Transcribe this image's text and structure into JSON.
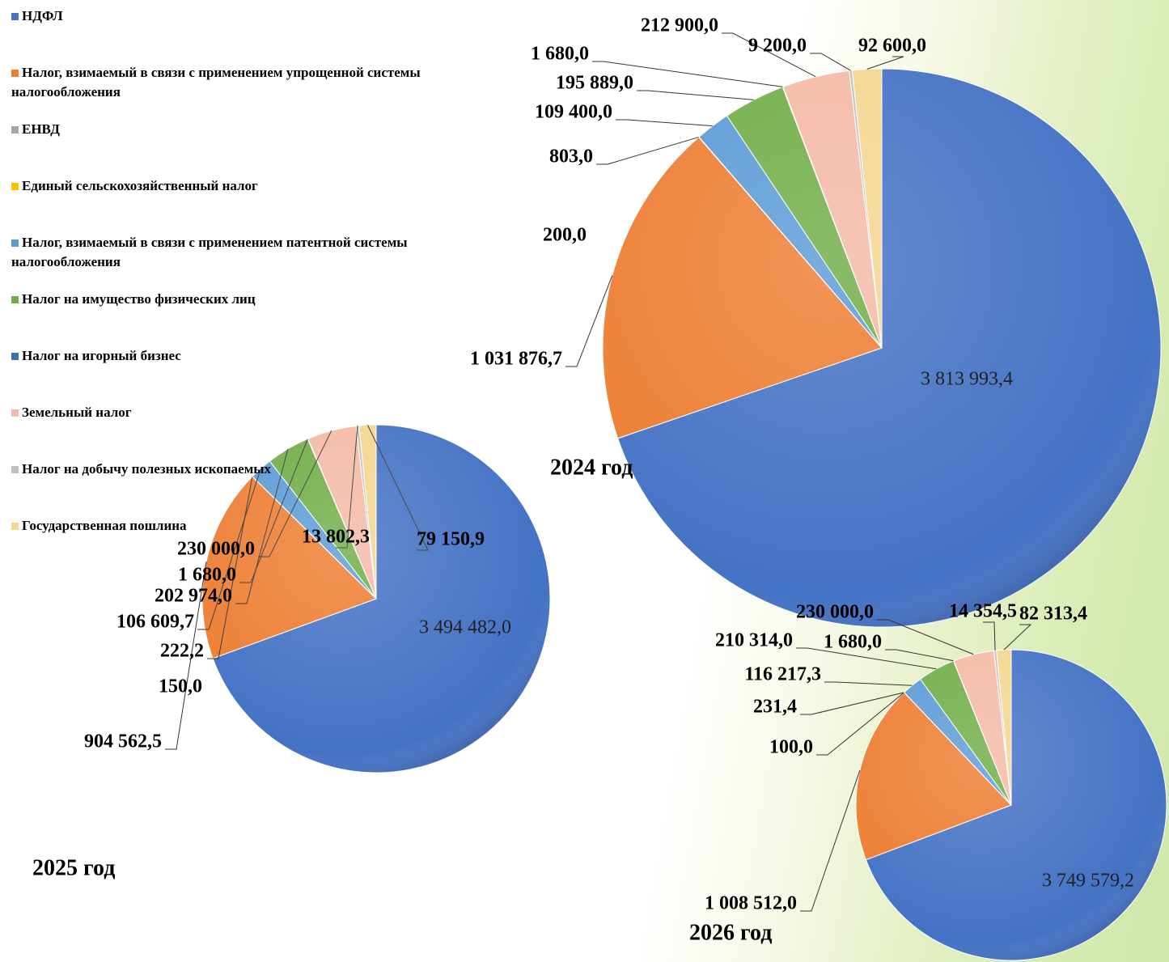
{
  "chart_data": [
    {
      "type": "pie",
      "title": "2024 год",
      "categories": [
        "НДФЛ",
        "Налог, взимаемый в связи с применением упрощенной системы налогообложения",
        "ЕНВД",
        "Единый сельскохозяйственный налог",
        "Налог, взимаемый в связи с применением патентной системы налогообложения",
        "Налог на имущество физических лиц",
        "Налог на игорный бизнес",
        "Земельный налог",
        "Налог на добычу полезных ископаемых",
        "Государственная пошлина"
      ],
      "colors": [
        "#4472c4",
        "#ed7d31",
        "#a5a5a5",
        "#ffc000",
        "#5b9bd5",
        "#70ad47",
        "#3f6fb5",
        "#f4b9a6",
        "#bfbfbf",
        "#f3d58f"
      ],
      "values": [
        3813993.4,
        1031876.7,
        200.0,
        803.0,
        109400.0,
        195889.0,
        1680.0,
        212900.0,
        9200.0,
        92600.0
      ],
      "value_labels": [
        "3 813 993,4",
        "1 031 876,7",
        "200,0",
        "803,0",
        "109 400,0",
        "195 889,0",
        "1 680,0",
        "212 900,0",
        "9 200,0",
        "92 600,0"
      ],
      "legend": "left"
    },
    {
      "type": "pie",
      "title": "2025 год",
      "colors": [
        "#4472c4",
        "#ed7d31",
        "#a5a5a5",
        "#ffc000",
        "#5b9bd5",
        "#70ad47",
        "#3f6fb5",
        "#f4b9a6",
        "#bfbfbf",
        "#f3d58f"
      ],
      "values": [
        3494482.0,
        904562.5,
        150.0,
        222.2,
        106609.7,
        202974.0,
        1680.0,
        230000.0,
        13802.3,
        79150.9
      ],
      "value_labels": [
        "3 494 482,0",
        "904 562,5",
        "150,0",
        "222,2",
        "106 609,7",
        "202 974,0",
        "1 680,0",
        "230 000,0",
        "13 802,3",
        "79 150,9"
      ]
    },
    {
      "type": "pie",
      "title": "2026 год",
      "colors": [
        "#4472c4",
        "#ed7d31",
        "#a5a5a5",
        "#ffc000",
        "#5b9bd5",
        "#70ad47",
        "#3f6fb5",
        "#f4b9a6",
        "#bfbfbf",
        "#f3d58f"
      ],
      "values": [
        3749579.2,
        1008512.0,
        100.0,
        231.4,
        116217.3,
        210314.0,
        1680.0,
        230000.0,
        14354.5,
        82313.4
      ],
      "value_labels": [
        "3 749 579,2",
        "1 008 512,0",
        "100,0",
        "231,4",
        "116 217,3",
        "210 314,0",
        "1 680,0",
        "230 000,0",
        "14 354,5",
        "82 313,4"
      ]
    }
  ]
}
